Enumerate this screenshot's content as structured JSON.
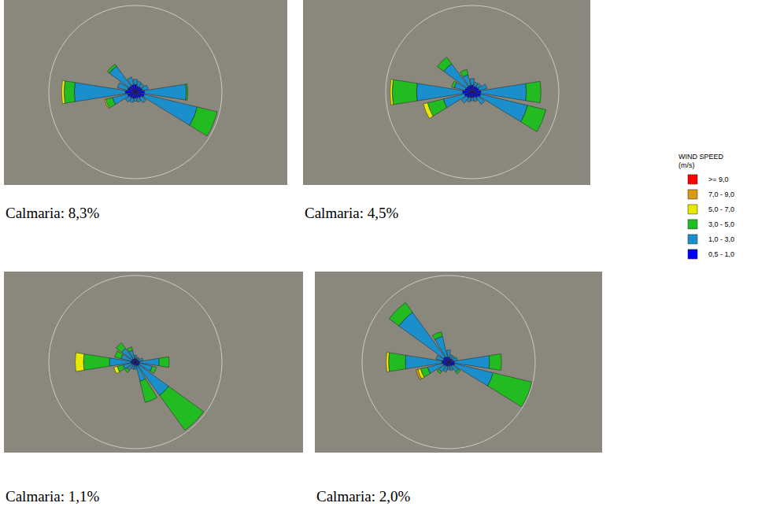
{
  "chart_data": [
    {
      "type": "barpolar",
      "caption": "Calmaria: 8,3%",
      "legend": "right",
      "legend_title": [
        "WIND SPEED",
        "(m/s)"
      ],
      "theta": [
        0,
        22.5,
        45,
        67.5,
        90,
        112.5,
        135,
        157.5,
        180,
        202.5,
        225,
        247.5,
        270,
        292.5,
        315,
        337.5
      ],
      "rlim": [
        0,
        17
      ],
      "tick_labels": false,
      "stacked": true,
      "series": [
        {
          "name": "0,5 - 1,0",
          "color": "#0000ff",
          "values": [
            1.5,
            1.2,
            1.3,
            1.4,
            1.8,
            1.8,
            1.4,
            1.2,
            1.2,
            1.3,
            1.4,
            1.6,
            2.0,
            1.6,
            1.5,
            1.5
          ]
        },
        {
          "name": "1,0 - 3,0",
          "color": "#1a8fcc",
          "values": [
            1.0,
            1.0,
            0.8,
            1.2,
            8.2,
            10.7,
            1.2,
            0.8,
            0.6,
            0.8,
            1.0,
            3.0,
            10.0,
            2.0,
            4.8,
            1.5
          ]
        },
        {
          "name": "3,0 - 5,0",
          "color": "#22bb22",
          "values": [
            0,
            0,
            0,
            0,
            0.3,
            4.0,
            0,
            0,
            0,
            0,
            0,
            1.4,
            2.0,
            0,
            0.5,
            0
          ]
        },
        {
          "name": "5,0 - 7,0",
          "color": "#e8e800",
          "values": [
            0,
            0,
            0,
            0,
            0,
            0,
            0,
            0,
            0,
            0,
            0,
            0.2,
            0.5,
            0,
            0,
            0
          ]
        },
        {
          "name": "7,0 - 9,0",
          "color": "#d89a10",
          "values": [
            0,
            0,
            0,
            0,
            0,
            0,
            0,
            0,
            0,
            0,
            0,
            0,
            0,
            0,
            0,
            0
          ]
        },
        {
          "name": ">= 9,0",
          "color": "#ff0000",
          "values": [
            0,
            0,
            0,
            0,
            0,
            0,
            0,
            0,
            0,
            0,
            0,
            0,
            0,
            0,
            0,
            0
          ]
        }
      ]
    },
    {
      "type": "barpolar",
      "caption": "Calmaria: 4,5%",
      "theta": [
        0,
        22.5,
        45,
        67.5,
        90,
        112.5,
        135,
        157.5,
        180,
        202.5,
        225,
        247.5,
        270,
        292.5,
        315,
        337.5
      ],
      "rlim": [
        0,
        16
      ],
      "tick_labels": false,
      "stacked": true,
      "series": [
        {
          "name": "0,5 - 1,0",
          "color": "#0000ff",
          "values": [
            1.3,
            1.1,
            1.2,
            1.3,
            1.6,
            1.6,
            1.3,
            1.0,
            1.0,
            1.1,
            1.3,
            1.5,
            1.8,
            1.4,
            1.3,
            1.3
          ]
        },
        {
          "name": "1,0 - 3,0",
          "color": "#1a8fcc",
          "values": [
            1.2,
            0.8,
            0.8,
            1.5,
            8.4,
            8.9,
            1.5,
            0.8,
            0.6,
            0.8,
            1.2,
            4.0,
            8.5,
            2.0,
            5.2,
            2.0
          ]
        },
        {
          "name": "3,0 - 5,0",
          "color": "#22bb22",
          "values": [
            0,
            0,
            0,
            0,
            2.7,
            3.5,
            0,
            0,
            0,
            0,
            0,
            3.0,
            4.5,
            0.5,
            1.5,
            1.0
          ]
        },
        {
          "name": "5,0 - 7,0",
          "color": "#e8e800",
          "values": [
            0,
            0,
            0,
            0,
            0,
            0,
            0,
            0,
            0,
            0,
            0,
            0.8,
            0.4,
            0,
            0,
            0
          ]
        },
        {
          "name": "7,0 - 9,0",
          "color": "#d89a10",
          "values": [
            0,
            0,
            0,
            0,
            0,
            0,
            0,
            0,
            0,
            0,
            0,
            0,
            0,
            0,
            0,
            0
          ]
        },
        {
          "name": ">= 9,0",
          "color": "#ff0000",
          "values": [
            0,
            0,
            0,
            0,
            0,
            0,
            0,
            0,
            0,
            0,
            0,
            0,
            0,
            0,
            0,
            0
          ]
        }
      ]
    },
    {
      "type": "barpolar",
      "caption": "Calmaria: 1,1%",
      "theta": [
        0,
        22.5,
        45,
        67.5,
        90,
        112.5,
        135,
        157.5,
        180,
        202.5,
        225,
        247.5,
        270,
        292.5,
        315,
        337.5
      ],
      "rlim": [
        0,
        20
      ],
      "tick_labels": false,
      "stacked": true,
      "series": [
        {
          "name": "0,5 - 1,0",
          "color": "#0000ff",
          "values": [
            0.8,
            0.7,
            0.7,
            0.8,
            1.0,
            1.0,
            1.1,
            0.9,
            0.7,
            0.7,
            0.8,
            0.9,
            1.1,
            0.9,
            0.9,
            0.8
          ]
        },
        {
          "name": "1,0 - 3,0",
          "color": "#1a8fcc",
          "values": [
            0.8,
            0.5,
            0.5,
            1.0,
            4.5,
            3.0,
            8.4,
            3.6,
            1.0,
            1.0,
            1.5,
            2.0,
            4.9,
            2.5,
            3.0,
            2.0
          ]
        },
        {
          "name": "3,0 - 5,0",
          "color": "#22bb22",
          "values": [
            0,
            0,
            0,
            0,
            2.3,
            1.0,
            10.0,
            5.1,
            0,
            0,
            0.7,
            1.4,
            6.0,
            1.5,
            1.6,
            0.8
          ]
        },
        {
          "name": "5,0 - 7,0",
          "color": "#e8e800",
          "values": [
            0,
            0,
            0,
            0,
            0,
            0,
            0,
            0,
            0,
            0,
            0,
            0.8,
            1.9,
            0,
            0,
            0
          ]
        },
        {
          "name": "7,0 - 9,0",
          "color": "#d89a10",
          "values": [
            0,
            0,
            0,
            0,
            0,
            0,
            0,
            0,
            0,
            0,
            0,
            0,
            0,
            0,
            0,
            0
          ]
        },
        {
          "name": ">= 9,0",
          "color": "#ff0000",
          "values": [
            0,
            0,
            0,
            0,
            0,
            0,
            0,
            0,
            0,
            0,
            0,
            0,
            0,
            0,
            0,
            0
          ]
        }
      ]
    },
    {
      "type": "barpolar",
      "caption": "Calmaria: 2,0%",
      "theta": [
        0,
        22.5,
        45,
        67.5,
        90,
        112.5,
        135,
        157.5,
        180,
        202.5,
        225,
        247.5,
        270,
        292.5,
        315,
        337.5
      ],
      "rlim": [
        0,
        18
      ],
      "tick_labels": false,
      "stacked": true,
      "series": [
        {
          "name": "0,5 - 1,0",
          "color": "#0000ff",
          "values": [
            1.0,
            0.8,
            0.8,
            0.9,
            1.2,
            1.3,
            1.0,
            0.8,
            0.8,
            0.9,
            1.0,
            1.2,
            1.4,
            1.2,
            1.3,
            1.1
          ]
        },
        {
          "name": "1,0 - 3,0",
          "color": "#1a8fcc",
          "values": [
            1.5,
            0.8,
            0.8,
            1.0,
            7.3,
            8.2,
            1.5,
            1.0,
            0.8,
            1.2,
            1.5,
            3.3,
            7.6,
            1.5,
            11.5,
            4.4
          ]
        },
        {
          "name": "3,0 - 5,0",
          "color": "#22bb22",
          "values": [
            0,
            0,
            0,
            0,
            2.5,
            8.3,
            0.5,
            0,
            0,
            0,
            0.5,
            1.5,
            3.5,
            0,
            2.5,
            1.0
          ]
        },
        {
          "name": "5,0 - 7,0",
          "color": "#e8e800",
          "values": [
            0,
            0,
            0,
            0,
            0,
            0,
            0,
            0,
            0,
            0,
            0,
            0.6,
            0.5,
            0,
            0,
            0
          ]
        },
        {
          "name": "7,0 - 9,0",
          "color": "#d89a10",
          "values": [
            0,
            0,
            0,
            0,
            0,
            0,
            0,
            0,
            0,
            0,
            0,
            0.4,
            0,
            0,
            0,
            0
          ]
        },
        {
          "name": ">= 9,0",
          "color": "#ff0000",
          "values": [
            0,
            0,
            0,
            0,
            0,
            0,
            0,
            0,
            0,
            0,
            0,
            0,
            0,
            0,
            0,
            0
          ]
        }
      ]
    }
  ]
}
